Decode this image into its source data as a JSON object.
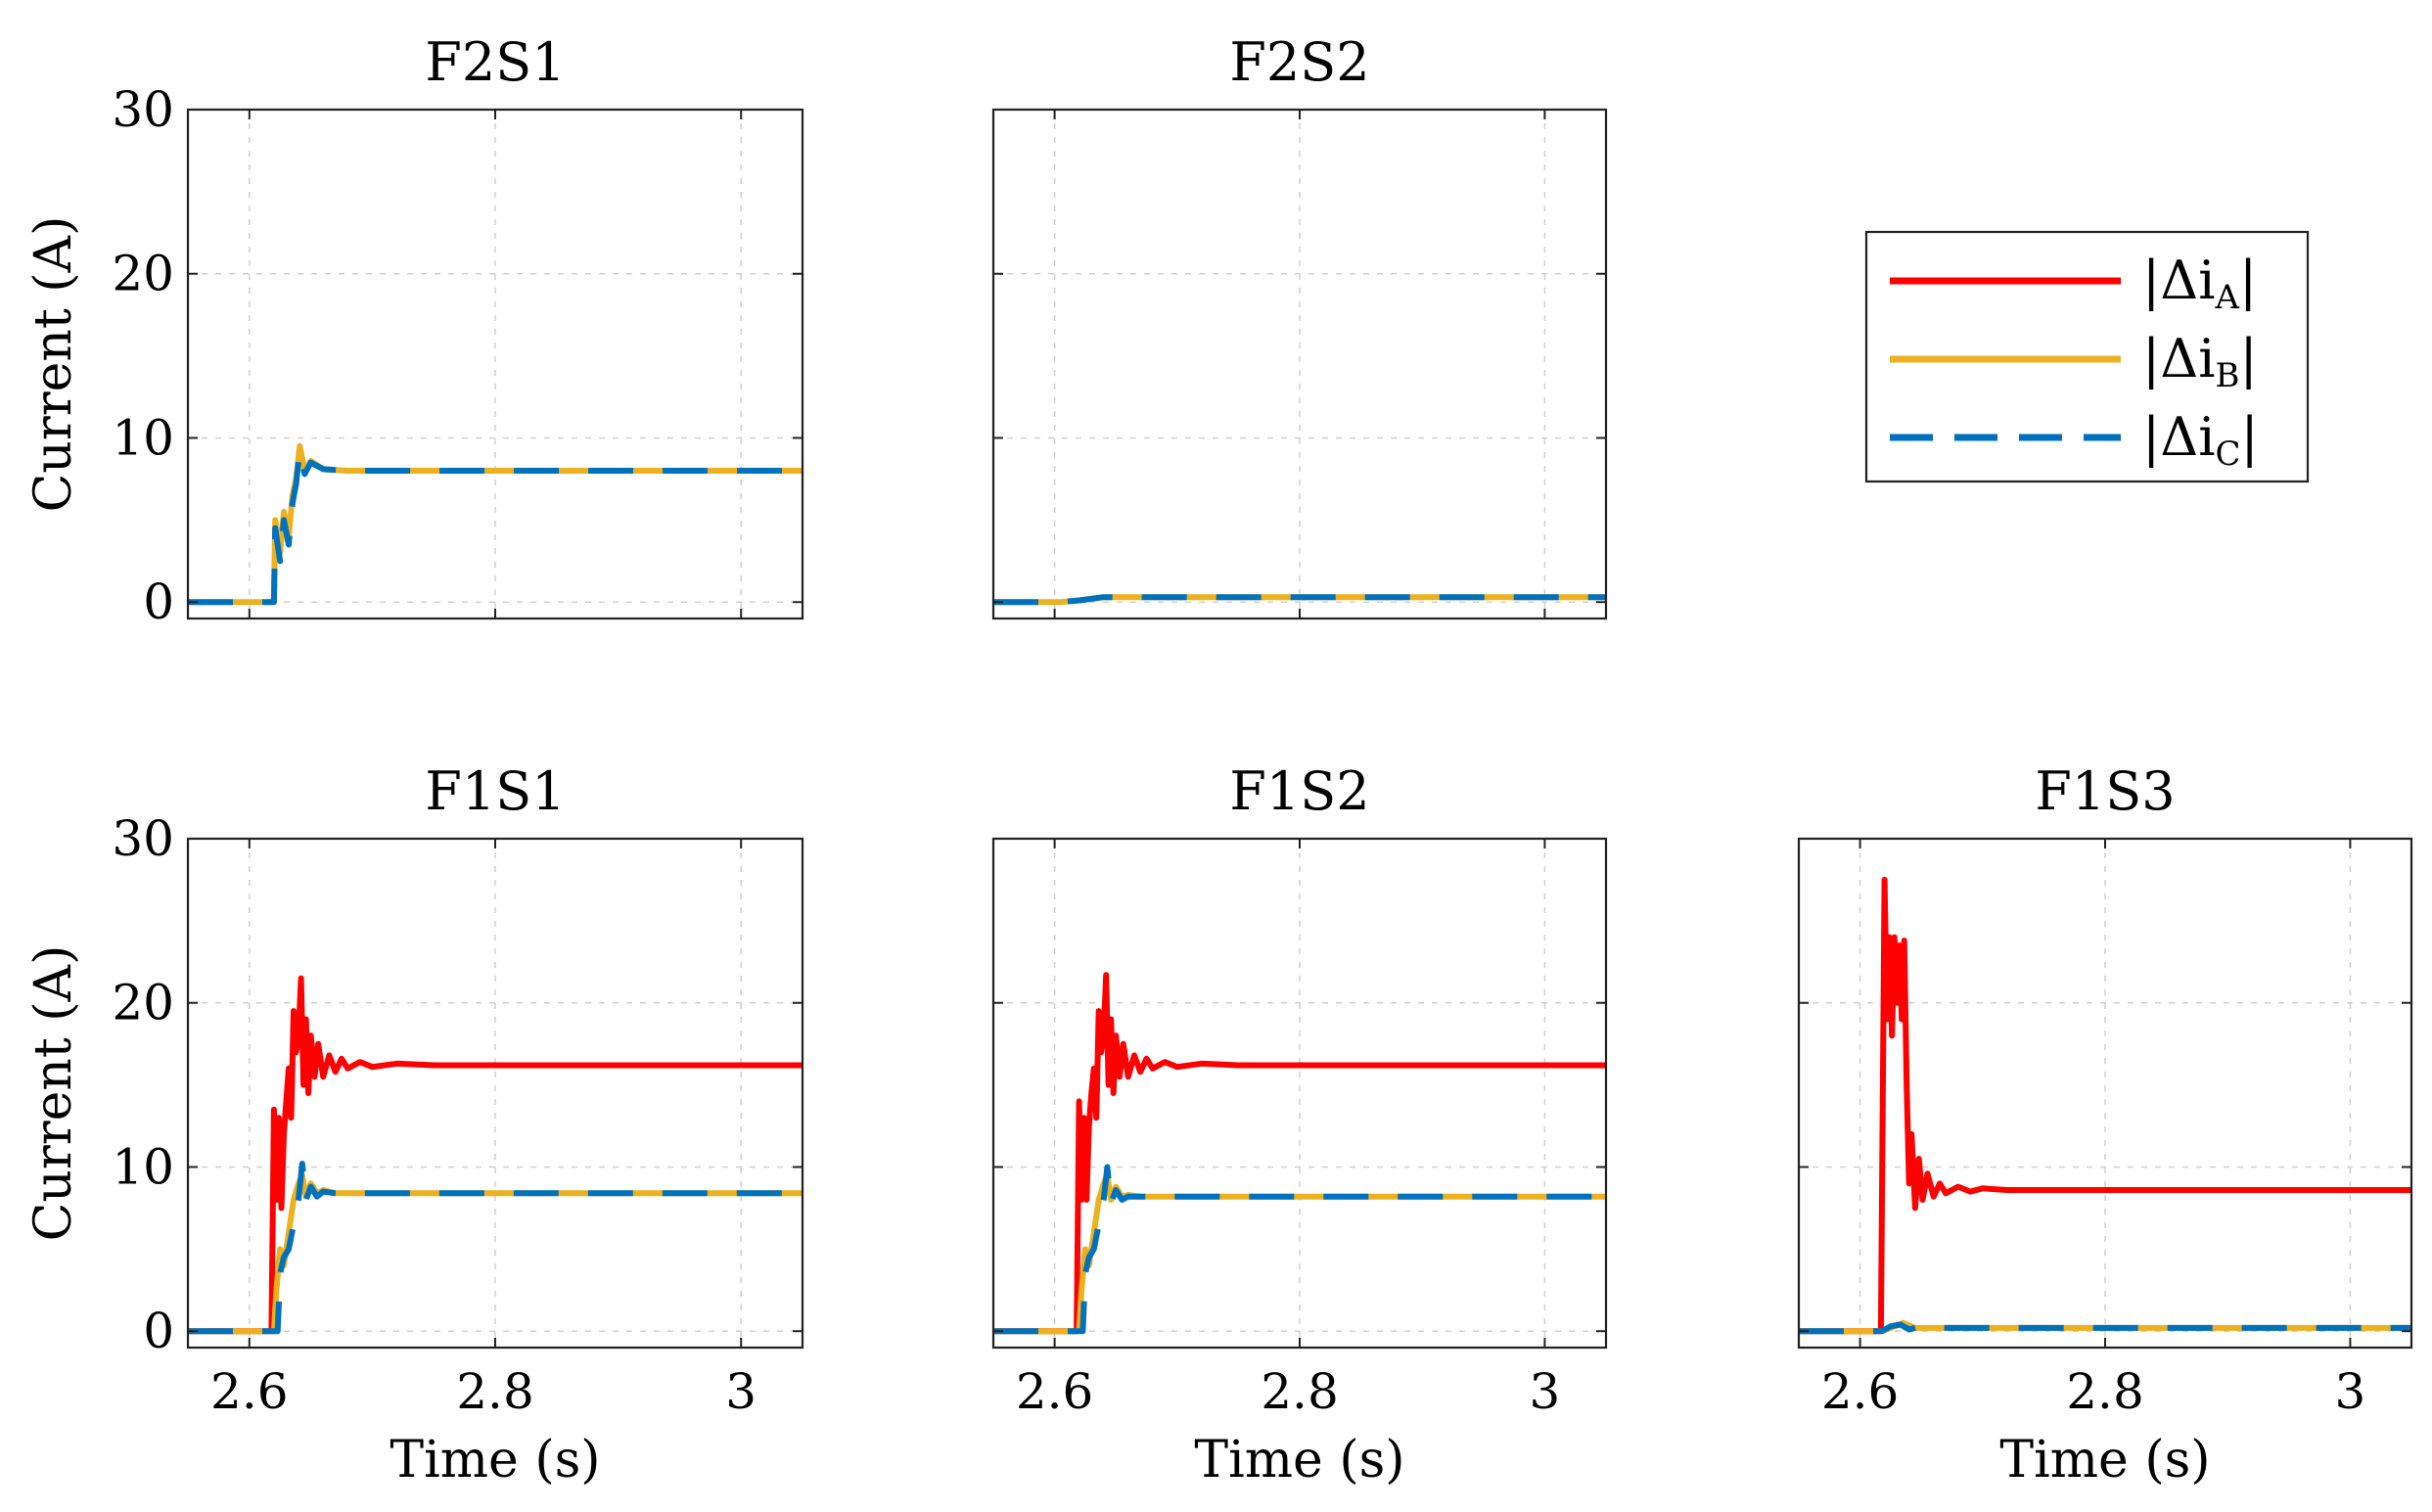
{
  "figure": {
    "ylabel": "Current (A)",
    "xlabel": "Time (s)"
  },
  "colors": {
    "A": "#ff0000",
    "B": "#edb120",
    "C": "#0072bd"
  },
  "legend": {
    "placement": "top-right",
    "entries": [
      {
        "key": "A",
        "label": "|Δi",
        "sub": "A",
        "close": "|",
        "style": "solid"
      },
      {
        "key": "B",
        "label": "|Δi",
        "sub": "B",
        "close": "|",
        "style": "solid"
      },
      {
        "key": "C",
        "label": "|Δi",
        "sub": "C",
        "close": "|",
        "style": "dashed"
      }
    ]
  },
  "chart_data": [
    {
      "type": "line",
      "id": "f2s1",
      "title": "F2S1",
      "xlim": [
        2.55,
        3.05
      ],
      "ylim": [
        -1,
        30
      ],
      "xticks": [
        2.6,
        2.8,
        3
      ],
      "yticks": [
        0,
        10,
        20,
        30
      ],
      "xticklabels": [],
      "yticklabels": [
        "0",
        "10",
        "20",
        "30"
      ],
      "ylabel": "Current (A)",
      "xlabel": "",
      "series": [
        {
          "name": "B",
          "points": [
            [
              2.55,
              0
            ],
            [
              2.62,
              0
            ],
            [
              2.621,
              5
            ],
            [
              2.625,
              3
            ],
            [
              2.628,
              5.5
            ],
            [
              2.632,
              4
            ],
            [
              2.635,
              6.5
            ],
            [
              2.638,
              7.5
            ],
            [
              2.641,
              9.5
            ],
            [
              2.645,
              8
            ],
            [
              2.65,
              8.6
            ],
            [
              2.66,
              8.1
            ],
            [
              2.68,
              8
            ],
            [
              3.05,
              8
            ]
          ]
        },
        {
          "name": "C",
          "points": [
            [
              2.55,
              0
            ],
            [
              2.62,
              0
            ],
            [
              2.621,
              4.5
            ],
            [
              2.625,
              2.5
            ],
            [
              2.628,
              5
            ],
            [
              2.632,
              3.5
            ],
            [
              2.635,
              6
            ],
            [
              2.638,
              7.2
            ],
            [
              2.641,
              9.2
            ],
            [
              2.645,
              7.8
            ],
            [
              2.65,
              8.5
            ],
            [
              2.66,
              8.1
            ],
            [
              2.68,
              8
            ],
            [
              3.05,
              8
            ]
          ]
        }
      ]
    },
    {
      "type": "line",
      "id": "f2s2",
      "title": "F2S2",
      "xlim": [
        2.55,
        3.05
      ],
      "ylim": [
        -1,
        30
      ],
      "xticks": [
        2.6,
        2.8,
        3
      ],
      "yticks": [
        0,
        10,
        20,
        30
      ],
      "xticklabels": [],
      "yticklabels": [],
      "ylabel": "",
      "xlabel": "",
      "series": [
        {
          "name": "B",
          "points": [
            [
              2.55,
              0
            ],
            [
              2.605,
              0
            ],
            [
              2.62,
              0.1
            ],
            [
              2.64,
              0.3
            ],
            [
              2.66,
              0.3
            ],
            [
              3.05,
              0.3
            ]
          ]
        },
        {
          "name": "C",
          "points": [
            [
              2.55,
              0
            ],
            [
              2.605,
              0
            ],
            [
              2.62,
              0.1
            ],
            [
              2.64,
              0.3
            ],
            [
              2.66,
              0.3
            ],
            [
              3.05,
              0.3
            ]
          ]
        }
      ]
    },
    {
      "type": "line",
      "id": "f1s1",
      "title": "F1S1",
      "xlim": [
        2.55,
        3.05
      ],
      "ylim": [
        -1,
        30
      ],
      "xticks": [
        2.6,
        2.8,
        3
      ],
      "yticks": [
        0,
        10,
        20,
        30
      ],
      "xticklabels": [
        "2.6",
        "2.8",
        "3"
      ],
      "yticklabels": [
        "0",
        "10",
        "20",
        "30"
      ],
      "ylabel": "Current (A)",
      "xlabel": "Time (s)",
      "series": [
        {
          "name": "A",
          "points": [
            [
              2.55,
              0
            ],
            [
              2.618,
              0
            ],
            [
              2.62,
              13.5
            ],
            [
              2.622,
              8
            ],
            [
              2.624,
              13
            ],
            [
              2.626,
              7.5
            ],
            [
              2.628,
              12
            ],
            [
              2.63,
              14
            ],
            [
              2.632,
              16
            ],
            [
              2.634,
              13
            ],
            [
              2.636,
              19.5
            ],
            [
              2.638,
              17
            ],
            [
              2.64,
              18
            ],
            [
              2.642,
              21.5
            ],
            [
              2.644,
              15
            ],
            [
              2.646,
              19
            ],
            [
              2.648,
              14.5
            ],
            [
              2.65,
              18
            ],
            [
              2.653,
              15.5
            ],
            [
              2.656,
              17.5
            ],
            [
              2.66,
              15.5
            ],
            [
              2.665,
              16.8
            ],
            [
              2.67,
              15.8
            ],
            [
              2.675,
              16.6
            ],
            [
              2.68,
              16
            ],
            [
              2.69,
              16.4
            ],
            [
              2.7,
              16.1
            ],
            [
              2.72,
              16.3
            ],
            [
              2.75,
              16.2
            ],
            [
              3.05,
              16.2
            ]
          ]
        },
        {
          "name": "B",
          "points": [
            [
              2.55,
              0
            ],
            [
              2.62,
              0
            ],
            [
              2.622,
              2.5
            ],
            [
              2.625,
              5
            ],
            [
              2.628,
              4
            ],
            [
              2.632,
              6
            ],
            [
              2.636,
              8
            ],
            [
              2.64,
              9
            ],
            [
              2.643,
              9.5
            ],
            [
              2.646,
              8.2
            ],
            [
              2.65,
              9
            ],
            [
              2.655,
              8.4
            ],
            [
              2.66,
              8.6
            ],
            [
              2.67,
              8.4
            ],
            [
              3.05,
              8.4
            ]
          ]
        },
        {
          "name": "C",
          "points": [
            [
              2.55,
              0
            ],
            [
              2.623,
              0
            ],
            [
              2.625,
              3.5
            ],
            [
              2.628,
              4.5
            ],
            [
              2.632,
              5
            ],
            [
              2.636,
              6.5
            ],
            [
              2.64,
              8
            ],
            [
              2.643,
              10.2
            ],
            [
              2.646,
              8
            ],
            [
              2.65,
              8.8
            ],
            [
              2.655,
              8.2
            ],
            [
              2.66,
              8.5
            ],
            [
              2.67,
              8.4
            ],
            [
              3.05,
              8.4
            ]
          ]
        }
      ]
    },
    {
      "type": "line",
      "id": "f1s2",
      "title": "F1S2",
      "xlim": [
        2.55,
        3.05
      ],
      "ylim": [
        -1,
        30
      ],
      "xticks": [
        2.6,
        2.8,
        3
      ],
      "yticks": [
        0,
        10,
        20,
        30
      ],
      "xticklabels": [
        "2.6",
        "2.8",
        "3"
      ],
      "yticklabels": [],
      "ylabel": "",
      "xlabel": "Time (s)",
      "series": [
        {
          "name": "A",
          "points": [
            [
              2.55,
              0
            ],
            [
              2.618,
              0
            ],
            [
              2.62,
              14
            ],
            [
              2.622,
              8
            ],
            [
              2.624,
              13
            ],
            [
              2.626,
              8
            ],
            [
              2.628,
              12.5
            ],
            [
              2.63,
              14.5
            ],
            [
              2.632,
              16
            ],
            [
              2.634,
              13
            ],
            [
              2.636,
              19.5
            ],
            [
              2.638,
              17
            ],
            [
              2.64,
              18
            ],
            [
              2.642,
              21.7
            ],
            [
              2.644,
              15
            ],
            [
              2.646,
              19
            ],
            [
              2.648,
              14.5
            ],
            [
              2.65,
              18
            ],
            [
              2.653,
              15.5
            ],
            [
              2.656,
              17.5
            ],
            [
              2.66,
              15.5
            ],
            [
              2.665,
              16.8
            ],
            [
              2.67,
              15.8
            ],
            [
              2.675,
              16.6
            ],
            [
              2.68,
              16
            ],
            [
              2.69,
              16.4
            ],
            [
              2.7,
              16.1
            ],
            [
              2.72,
              16.3
            ],
            [
              2.75,
              16.2
            ],
            [
              3.05,
              16.2
            ]
          ]
        },
        {
          "name": "B",
          "points": [
            [
              2.55,
              0
            ],
            [
              2.62,
              0
            ],
            [
              2.622,
              2.5
            ],
            [
              2.625,
              5
            ],
            [
              2.628,
              4
            ],
            [
              2.632,
              6
            ],
            [
              2.636,
              8
            ],
            [
              2.64,
              9
            ],
            [
              2.643,
              9.5
            ],
            [
              2.646,
              8
            ],
            [
              2.65,
              8.8
            ],
            [
              2.655,
              8.2
            ],
            [
              2.66,
              8.3
            ],
            [
              2.67,
              8.2
            ],
            [
              3.05,
              8.2
            ]
          ]
        },
        {
          "name": "C",
          "points": [
            [
              2.55,
              0
            ],
            [
              2.623,
              0
            ],
            [
              2.625,
              3.5
            ],
            [
              2.628,
              4.5
            ],
            [
              2.632,
              5
            ],
            [
              2.636,
              6.5
            ],
            [
              2.64,
              8
            ],
            [
              2.643,
              10
            ],
            [
              2.646,
              7.8
            ],
            [
              2.65,
              8.6
            ],
            [
              2.655,
              8
            ],
            [
              2.66,
              8.2
            ],
            [
              2.67,
              8.2
            ],
            [
              3.05,
              8.2
            ]
          ]
        }
      ]
    },
    {
      "type": "line",
      "id": "f1s3",
      "title": "F1S3",
      "xlim": [
        2.55,
        3.05
      ],
      "ylim": [
        -1,
        30
      ],
      "xticks": [
        2.6,
        2.8,
        3
      ],
      "yticks": [
        0,
        10,
        20,
        30
      ],
      "xticklabels": [
        "2.6",
        "2.8",
        "3"
      ],
      "yticklabels": [],
      "ylabel": "",
      "xlabel": "Time (s)",
      "series": [
        {
          "name": "A",
          "points": [
            [
              2.55,
              0
            ],
            [
              2.617,
              0
            ],
            [
              2.62,
              27.5
            ],
            [
              2.622,
              19
            ],
            [
              2.624,
              24
            ],
            [
              2.626,
              18
            ],
            [
              2.628,
              24
            ],
            [
              2.63,
              20
            ],
            [
              2.632,
              23.5
            ],
            [
              2.634,
              19
            ],
            [
              2.636,
              23.8
            ],
            [
              2.638,
              15
            ],
            [
              2.64,
              9
            ],
            [
              2.642,
              12
            ],
            [
              2.645,
              7.5
            ],
            [
              2.648,
              10.5
            ],
            [
              2.651,
              8
            ],
            [
              2.655,
              9.6
            ],
            [
              2.66,
              8.2
            ],
            [
              2.665,
              9
            ],
            [
              2.67,
              8.4
            ],
            [
              2.68,
              8.8
            ],
            [
              2.69,
              8.5
            ],
            [
              2.7,
              8.7
            ],
            [
              2.72,
              8.6
            ],
            [
              2.75,
              8.6
            ],
            [
              3.05,
              8.6
            ]
          ]
        },
        {
          "name": "B",
          "points": [
            [
              2.55,
              0
            ],
            [
              2.618,
              0
            ],
            [
              2.625,
              0.2
            ],
            [
              2.635,
              0.5
            ],
            [
              2.645,
              0.2
            ],
            [
              2.66,
              0.2
            ],
            [
              3.05,
              0.2
            ]
          ]
        },
        {
          "name": "C",
          "points": [
            [
              2.55,
              0
            ],
            [
              2.618,
              0
            ],
            [
              2.625,
              0.3
            ],
            [
              2.633,
              0.4
            ],
            [
              2.64,
              0.1
            ],
            [
              2.65,
              0.3
            ],
            [
              2.66,
              0.2
            ],
            [
              3.05,
              0.2
            ]
          ]
        }
      ]
    }
  ]
}
